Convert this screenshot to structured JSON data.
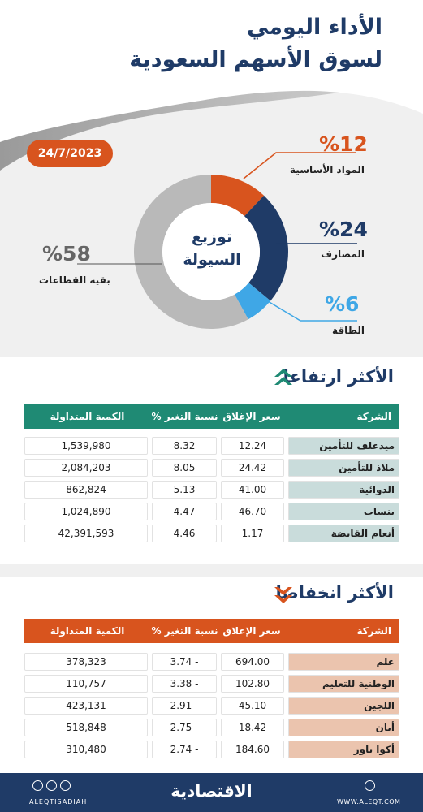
{
  "header": {
    "title_line1": "الأداء اليومي",
    "title_line2": "لسوق الأسهم السعودية",
    "date": "24/7/2023"
  },
  "colors": {
    "orange": "#d8541e",
    "navy": "#1f3b67",
    "blue": "#3fa7e6",
    "gray": "#b9b9b9",
    "teal": "#1f8a74",
    "up_row_name_bg": "#c9dcdb",
    "down_row_name_bg": "#ebc4ae"
  },
  "chart_data": {
    "type": "pie",
    "title": "توزيع السيولة",
    "series": [
      {
        "name": "المواد الأساسية",
        "value": 12,
        "label": "%12",
        "color": "#d8541e"
      },
      {
        "name": "المصارف",
        "value": 24,
        "label": "%24",
        "color": "#1f3b67"
      },
      {
        "name": "الطاقة",
        "value": 6,
        "label": "%6",
        "color": "#3fa7e6"
      },
      {
        "name": "بقية القطاعات",
        "value": 58,
        "label": "%58",
        "color": "#b9b9b9"
      }
    ]
  },
  "donut": {
    "center_line1": "توزيع",
    "center_line2": "السيولة"
  },
  "gainers": {
    "title": "الأكثر ارتفاعا",
    "headers": {
      "company": "الشركة",
      "close": "سعر الإغلاق",
      "change": "نسبة التغير %",
      "volume": "الكمية المتداولة"
    },
    "rows": [
      {
        "company": "ميدغلف للتأمين",
        "close": "12.24",
        "change": "8.32",
        "volume": "1,539,980"
      },
      {
        "company": "ملاذ للتأمين",
        "close": "24.42",
        "change": "8.05",
        "volume": "2,084,203"
      },
      {
        "company": "الدوائية",
        "close": "41.00",
        "change": "5.13",
        "volume": "862,824"
      },
      {
        "company": "ينساب",
        "close": "46.70",
        "change": "4.47",
        "volume": "1,024,890"
      },
      {
        "company": "أنعام القابضة",
        "close": "1.17",
        "change": "4.46",
        "volume": "42,391,593"
      }
    ]
  },
  "losers": {
    "title": "الأكثر انخفاضا",
    "headers": {
      "company": "الشركة",
      "close": "سعر الإغلاق",
      "change": "نسبة التغير %",
      "volume": "الكمية المتداولة"
    },
    "rows": [
      {
        "company": "علم",
        "close": "694.00",
        "change": "3.74 -",
        "volume": "378,323"
      },
      {
        "company": "الوطنية للتعليم",
        "close": "102.80",
        "change": "3.38 -",
        "volume": "110,757"
      },
      {
        "company": "اللجين",
        "close": "45.10",
        "change": "2.91 -",
        "volume": "423,131"
      },
      {
        "company": "أيان",
        "close": "18.42",
        "change": "2.75 -",
        "volume": "518,848"
      },
      {
        "company": "أكوا باور",
        "close": "184.60",
        "change": "2.74 -",
        "volume": "310,480"
      }
    ]
  },
  "footer": {
    "brand": "الاقتصادية",
    "handle": "ALEQTISADIAH",
    "website": "WWW.ALEQT.COM"
  }
}
